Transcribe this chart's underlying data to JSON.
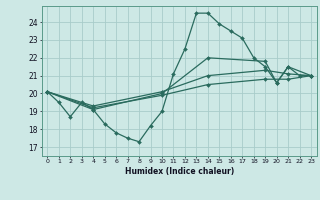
{
  "background_color": "#cde8e5",
  "grid_color": "#a8ccca",
  "line_color": "#2a6b5e",
  "xlabel": "Humidex (Indice chaleur)",
  "xlim": [
    -0.5,
    23.5
  ],
  "ylim": [
    16.5,
    24.9
  ],
  "xticks": [
    0,
    1,
    2,
    3,
    4,
    5,
    6,
    7,
    8,
    9,
    10,
    11,
    12,
    13,
    14,
    15,
    16,
    17,
    18,
    19,
    20,
    21,
    22,
    23
  ],
  "yticks": [
    17,
    18,
    19,
    20,
    21,
    22,
    23,
    24
  ],
  "lines": [
    {
      "x": [
        0,
        1,
        2,
        3,
        4,
        5,
        6,
        7,
        8,
        9,
        10,
        11,
        12,
        13,
        14,
        15,
        16,
        17,
        18,
        19,
        20,
        21,
        22,
        23
      ],
      "y": [
        20.1,
        19.5,
        18.7,
        19.5,
        19.1,
        18.3,
        17.8,
        17.5,
        17.3,
        18.2,
        19.0,
        21.1,
        22.5,
        24.5,
        24.5,
        23.9,
        23.5,
        23.1,
        22.0,
        21.5,
        20.6,
        21.5,
        21.0,
        21.0
      ]
    },
    {
      "x": [
        0,
        4,
        10,
        14,
        19,
        21,
        23
      ],
      "y": [
        20.1,
        19.2,
        19.9,
        20.5,
        20.8,
        20.8,
        21.0
      ]
    },
    {
      "x": [
        0,
        4,
        10,
        14,
        19,
        21,
        23
      ],
      "y": [
        20.1,
        19.3,
        20.1,
        21.0,
        21.3,
        21.1,
        21.0
      ]
    },
    {
      "x": [
        0,
        4,
        10,
        14,
        19,
        20,
        21,
        23
      ],
      "y": [
        20.1,
        19.1,
        20.0,
        22.0,
        21.8,
        20.6,
        21.5,
        21.0
      ]
    }
  ]
}
